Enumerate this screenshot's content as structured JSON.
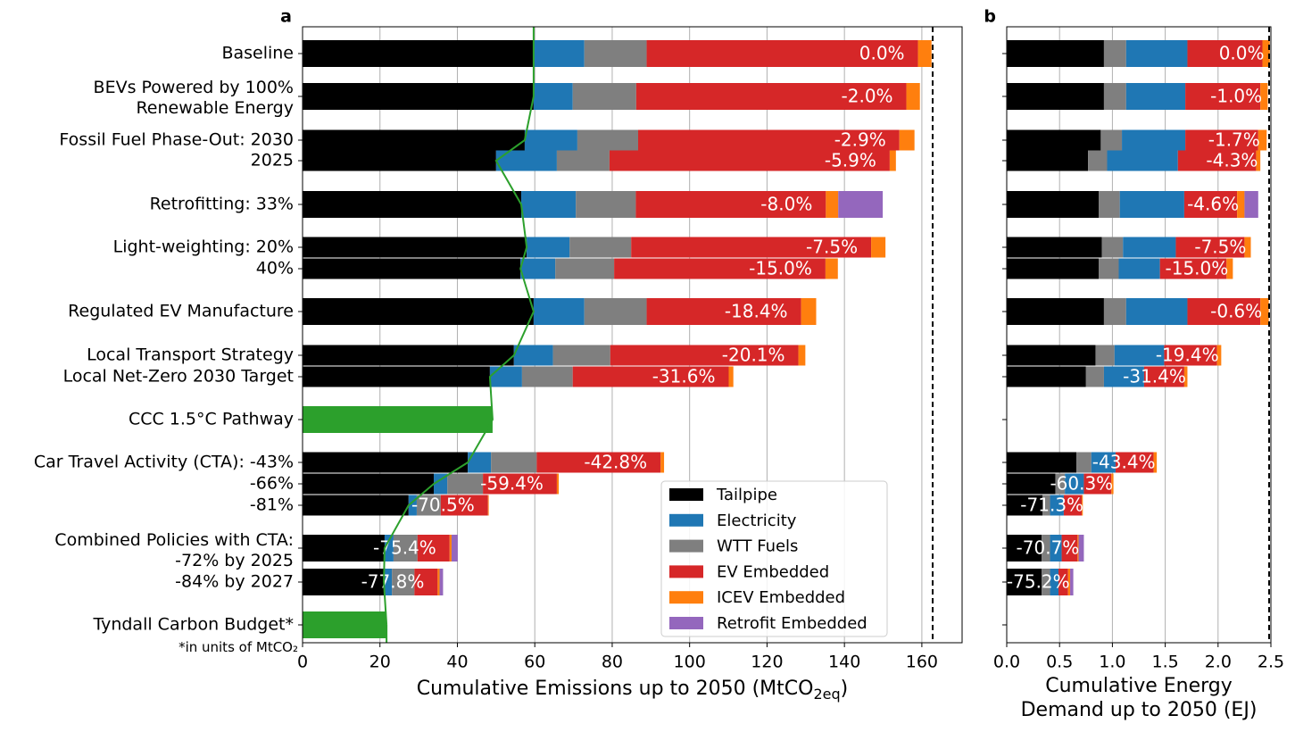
{
  "chart_data": [
    {
      "type": "bar",
      "orientation": "horizontal",
      "panel_label": "a",
      "categories": [
        "Baseline",
        "BEVs Powered by 100%\nRenewable Energy",
        "Fossil Fuel Phase-Out: 2030",
        "2025",
        "Retrofitting: 33%",
        "Light-weighting: 20%",
        "40%",
        "Regulated EV Manufacture",
        "Local Transport Strategy",
        "Local Net-Zero 2030 Target",
        "CCC 1.5°C Pathway",
        "Car Travel Activity (CTA): -43%",
        "-66%",
        "-81%",
        "Combined Policies with CTA:\n-72% by 2025",
        "-84% by 2027",
        "Tyndall Carbon Budget*"
      ],
      "footnote": "*in units of MtCO₂",
      "series": [
        {
          "name": "Tailpipe",
          "color": "#000000",
          "values": [
            59.7,
            59.7,
            57.4,
            50.0,
            56.5,
            57.9,
            56.3,
            59.7,
            54.6,
            48.4,
            null,
            42.7,
            33.9,
            27.4,
            21.2,
            21.0,
            null
          ]
        },
        {
          "name": "Electricity",
          "color": "#1f77b4",
          "values": [
            13.1,
            10.1,
            13.6,
            15.7,
            14.1,
            11.1,
            9.0,
            13.1,
            10.1,
            8.3,
            null,
            6.0,
            3.5,
            2.1,
            2.3,
            2.1,
            null
          ]
        },
        {
          "name": "WTT Fuels",
          "color": "#7f7f7f",
          "values": [
            16.1,
            16.4,
            15.7,
            13.6,
            15.5,
            15.9,
            15.2,
            16.1,
            14.8,
            13.1,
            null,
            11.8,
            9.2,
            6.2,
            6.2,
            5.8,
            null
          ]
        },
        {
          "name": "EV Embedded",
          "color": "#d62728",
          "values": [
            70.1,
            69.8,
            67.5,
            72.4,
            49.1,
            62.0,
            54.6,
            39.9,
            48.6,
            40.3,
            null,
            32.0,
            19.1,
            12.2,
            8.3,
            6.0,
            null
          ]
        },
        {
          "name": "ICEV Embedded",
          "color": "#ff7f0e",
          "values": [
            3.5,
            3.5,
            3.9,
            1.6,
            3.2,
            3.7,
            3.2,
            3.9,
            1.8,
            1.2,
            null,
            0.9,
            0.5,
            0.2,
            0.5,
            0.5,
            null
          ]
        },
        {
          "name": "Retrofit Embedded",
          "color": "#9467bd",
          "values": [
            null,
            null,
            null,
            null,
            11.5,
            null,
            null,
            null,
            null,
            null,
            null,
            null,
            null,
            null,
            1.6,
            0.9,
            null
          ]
        }
      ],
      "budget": {
        "color": "#2ca02c",
        "values": [
          null,
          null,
          null,
          null,
          null,
          null,
          null,
          null,
          null,
          null,
          49.1,
          null,
          null,
          null,
          null,
          null,
          21.7
        ]
      },
      "line": {
        "color": "#2ca02c",
        "values": [
          59.7,
          59.7,
          57.4,
          50.0,
          56.5,
          57.9,
          56.3,
          59.7,
          54.6,
          48.4,
          49.1,
          42.7,
          33.9,
          27.4,
          21.2,
          21.0,
          21.7
        ]
      },
      "change_labels": [
        "0.0%",
        "-2.0%",
        "-2.9%",
        "-5.9%",
        "-8.0%",
        "-7.5%",
        "-15.0%",
        "-18.4%",
        "-20.1%",
        "-31.6%",
        null,
        "-42.8%",
        "-59.4%",
        "-70.5%",
        "-75.4%",
        "-77.8%",
        null
      ],
      "xlabel": "Cumulative Emissions up to 2050 (MtCO",
      "xlabel_sub": "2eq",
      "xlabel_end": ")",
      "xlim": [
        0,
        170.4
      ],
      "xticks": [
        0,
        20,
        40,
        60,
        80,
        100,
        120,
        140,
        160
      ],
      "refline": 162.8,
      "grid": true,
      "legend": "lower right"
    },
    {
      "type": "bar",
      "orientation": "horizontal",
      "panel_label": "b",
      "stack_order": [
        0,
        2,
        1,
        3,
        4,
        5
      ],
      "series": [
        {
          "color": "#000000",
          "values": [
            0.92,
            0.92,
            0.89,
            0.77,
            0.87,
            0.9,
            0.87,
            0.92,
            0.84,
            0.75,
            null,
            0.66,
            0.46,
            0.34,
            0.33,
            0.33,
            null
          ]
        },
        {
          "color": "#1f77b4",
          "values": [
            0.58,
            0.56,
            0.6,
            0.67,
            0.61,
            0.5,
            0.39,
            0.58,
            0.47,
            0.38,
            null,
            0.23,
            0.18,
            0.13,
            0.11,
            0.08,
            null
          ]
        },
        {
          "color": "#7f7f7f",
          "values": [
            0.21,
            0.21,
            0.2,
            0.18,
            0.2,
            0.2,
            0.19,
            0.21,
            0.18,
            0.17,
            null,
            0.14,
            0.09,
            0.07,
            0.08,
            0.08,
            null
          ]
        },
        {
          "color": "#d62728",
          "values": [
            0.71,
            0.71,
            0.69,
            0.74,
            0.5,
            0.65,
            0.63,
            0.69,
            0.5,
            0.38,
            null,
            0.36,
            0.26,
            0.17,
            0.15,
            0.09,
            null
          ]
        },
        {
          "color": "#ff7f0e",
          "values": [
            0.07,
            0.07,
            0.08,
            0.04,
            0.07,
            0.06,
            0.06,
            0.08,
            0.04,
            0.03,
            null,
            0.03,
            0.02,
            0.01,
            0.01,
            0.02,
            null
          ]
        },
        {
          "color": "#9467bd",
          "values": [
            null,
            null,
            null,
            null,
            0.13,
            null,
            null,
            null,
            null,
            null,
            null,
            null,
            null,
            null,
            0.05,
            0.03,
            null
          ]
        }
      ],
      "change_labels": [
        "0.0%",
        "-1.0%",
        "-1.7%",
        "-4.3%",
        "-4.6%",
        "-7.5%",
        "-15.0%",
        "-0.6%",
        "-19.4%",
        "-31.4%",
        null,
        "-43.4%",
        "-60.3%",
        "-71.3%",
        "-70.7%",
        "-75.2%",
        null
      ],
      "xlabel": "Cumulative Energy\nDemand up to 2050 (EJ)",
      "xlim": [
        0,
        2.5
      ],
      "xticks": [
        {
          "value": 0,
          "label": "0.0"
        },
        0.5,
        {
          "value": 1,
          "label": "1.0"
        },
        1.5,
        {
          "value": 2,
          "label": "2.0"
        },
        2.5
      ],
      "refline": 2.5,
      "grid": true
    }
  ]
}
